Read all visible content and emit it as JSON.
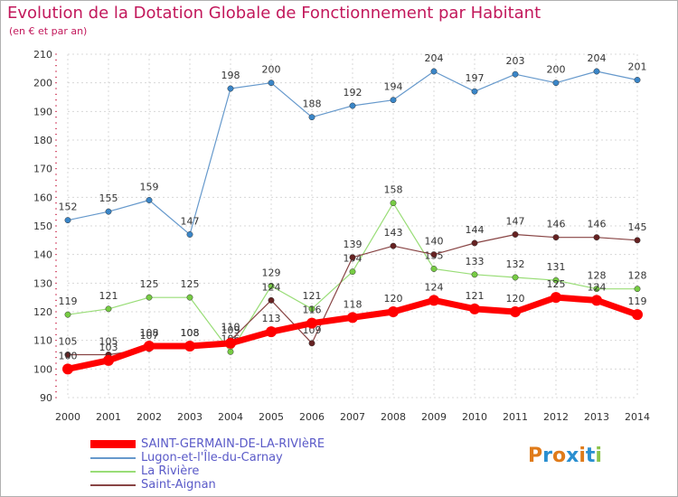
{
  "title": "Evolution de la Dotation Globale de Fonctionnement par Habitant",
  "subtitle": "(en € et par an)",
  "logo": [
    "P",
    "r",
    "o",
    "x",
    "i",
    "t",
    "i"
  ],
  "logo_colors": [
    "#e07b1a",
    "#2a8fd0",
    "#e07b1a",
    "#2a8fd0",
    "#e07b1a",
    "#2a8fd0",
    "#8bc34a"
  ],
  "chart_data": {
    "type": "line",
    "x": [
      "2000",
      "2001",
      "2002",
      "2003",
      "2004",
      "2005",
      "2006",
      "2007",
      "2008",
      "2009",
      "2010",
      "2011",
      "2012",
      "2013",
      "2014"
    ],
    "ylim": [
      90,
      210
    ],
    "yticks": [
      90,
      100,
      110,
      120,
      130,
      140,
      150,
      160,
      170,
      180,
      190,
      200,
      210
    ],
    "grid": true,
    "legend_position": "bottom",
    "series": [
      {
        "name": "Lugon-et-l'Île-du-Carnay",
        "color": "#6699cc",
        "marker": "#3a86c8",
        "bold": false,
        "values": [
          152,
          155,
          159,
          147,
          198,
          200,
          188,
          192,
          194,
          204,
          197,
          203,
          200,
          204,
          201
        ],
        "labels": [
          "152",
          "155",
          "159",
          "147",
          "198",
          "200",
          "188",
          "192",
          "194",
          "204",
          "197",
          "203",
          "200",
          "204",
          "201"
        ]
      },
      {
        "name": "La Rivière",
        "color": "#99dd77",
        "marker": "#77cc44",
        "bold": false,
        "values": [
          119,
          121,
          125,
          125,
          106,
          129,
          121,
          134,
          158,
          135,
          133,
          132,
          131,
          128,
          128
        ],
        "labels": [
          "119",
          "121",
          "125",
          "125",
          "106",
          "129",
          "121",
          "134",
          "158",
          "135",
          "133",
          "132",
          "131",
          "128",
          "128"
        ]
      },
      {
        "name": "Saint-Aignan",
        "color": "#884444",
        "marker": "#662222",
        "bold": false,
        "values": [
          105,
          105,
          107,
          108,
          110,
          124,
          109,
          139,
          143,
          140,
          144,
          147,
          146,
          146,
          145
        ],
        "labels": [
          "105",
          "105",
          "107",
          "108",
          "110",
          "124",
          "109",
          "139",
          "143",
          "140",
          "144",
          "147",
          "146",
          "146",
          "145"
        ]
      },
      {
        "name": "SAINT-GERMAIN-DE-LA-RIVIèRE",
        "color": "#ff0000",
        "marker": "#ff0000",
        "bold": true,
        "values": [
          100,
          103,
          108,
          108,
          109,
          113,
          116,
          118,
          120,
          124,
          121,
          120,
          125,
          124,
          119
        ],
        "labels": [
          "100",
          "103",
          "108",
          "108",
          "109",
          "113",
          "116",
          "118",
          "120",
          "124",
          "121",
          "120",
          "125",
          "124",
          "119"
        ]
      }
    ],
    "legend": [
      {
        "name": "SAINT-GERMAIN-DE-LA-RIVIèRE",
        "color": "#ff0000",
        "bold": true
      },
      {
        "name": "Lugon-et-l'Île-du-Carnay",
        "color": "#6699cc",
        "bold": false
      },
      {
        "name": "La Rivière",
        "color": "#99dd77",
        "bold": false
      },
      {
        "name": "Saint-Aignan",
        "color": "#884444",
        "bold": false
      }
    ]
  }
}
